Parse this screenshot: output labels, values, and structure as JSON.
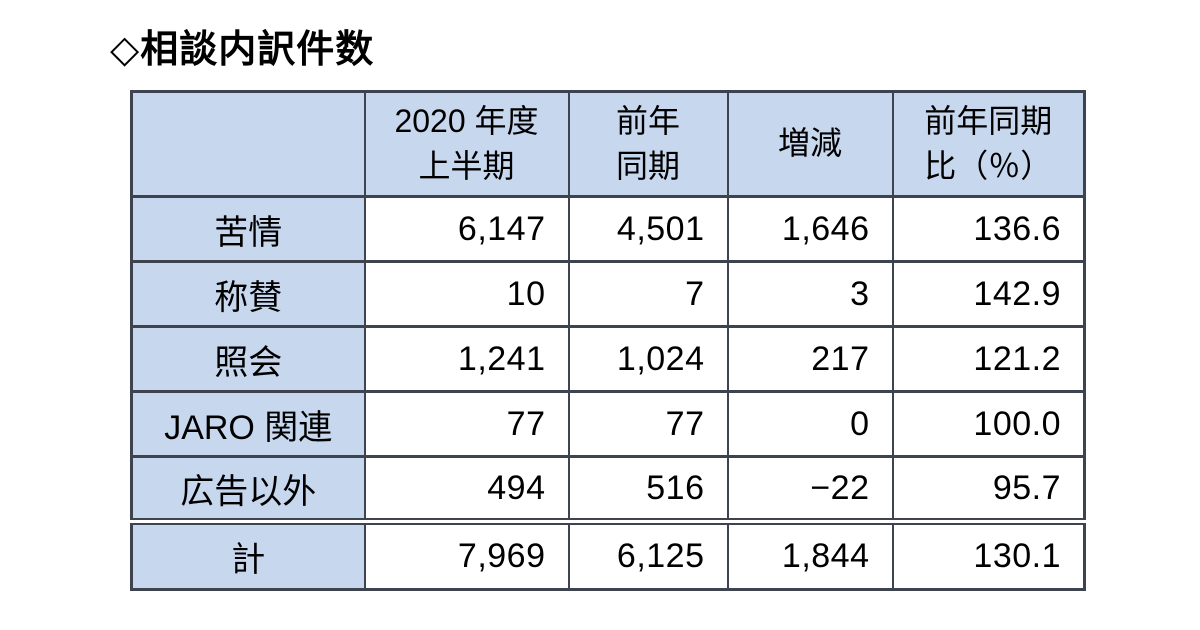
{
  "title": "◇相談内訳件数",
  "colors": {
    "header_bg": "#c7d7ee",
    "border": "#3d4450",
    "text": "#000000",
    "page_bg": "#ffffff"
  },
  "table": {
    "columns": [
      {
        "line1": "",
        "line2": ""
      },
      {
        "line1": "2020 年度",
        "line2": "上半期"
      },
      {
        "line1": "前年",
        "line2": "同期"
      },
      {
        "line1": "増減",
        "line2": ""
      },
      {
        "line1": "前年同期",
        "line2": "比（％）"
      }
    ],
    "rows": [
      {
        "label": "苦情",
        "values": [
          "6,147",
          "4,501",
          "1,646",
          "136.6"
        ]
      },
      {
        "label": "称賛",
        "values": [
          "10",
          "7",
          "3",
          "142.9"
        ]
      },
      {
        "label": "照会",
        "values": [
          "1,241",
          "1,024",
          "217",
          "121.2"
        ]
      },
      {
        "label": "JARO 関連",
        "values": [
          "77",
          "77",
          "0",
          "100.0"
        ]
      },
      {
        "label": "広告以外",
        "values": [
          "494",
          "516",
          "−22",
          "95.7"
        ]
      }
    ],
    "total": {
      "label": "計",
      "values": [
        "7,969",
        "6,125",
        "1,844",
        "130.1"
      ]
    }
  },
  "chart_data": {
    "type": "table",
    "title": "相談内訳件数",
    "categories": [
      "苦情",
      "称賛",
      "照会",
      "JARO 関連",
      "広告以外",
      "計"
    ],
    "series": [
      {
        "name": "2020 年度上半期",
        "values": [
          6147,
          10,
          1241,
          77,
          494,
          7969
        ]
      },
      {
        "name": "前年同期",
        "values": [
          4501,
          7,
          1024,
          77,
          516,
          6125
        ]
      },
      {
        "name": "増減",
        "values": [
          1646,
          3,
          217,
          0,
          -22,
          1844
        ]
      },
      {
        "name": "前年同期比(%)",
        "values": [
          136.6,
          142.9,
          121.2,
          100.0,
          95.7,
          130.1
        ]
      }
    ]
  }
}
